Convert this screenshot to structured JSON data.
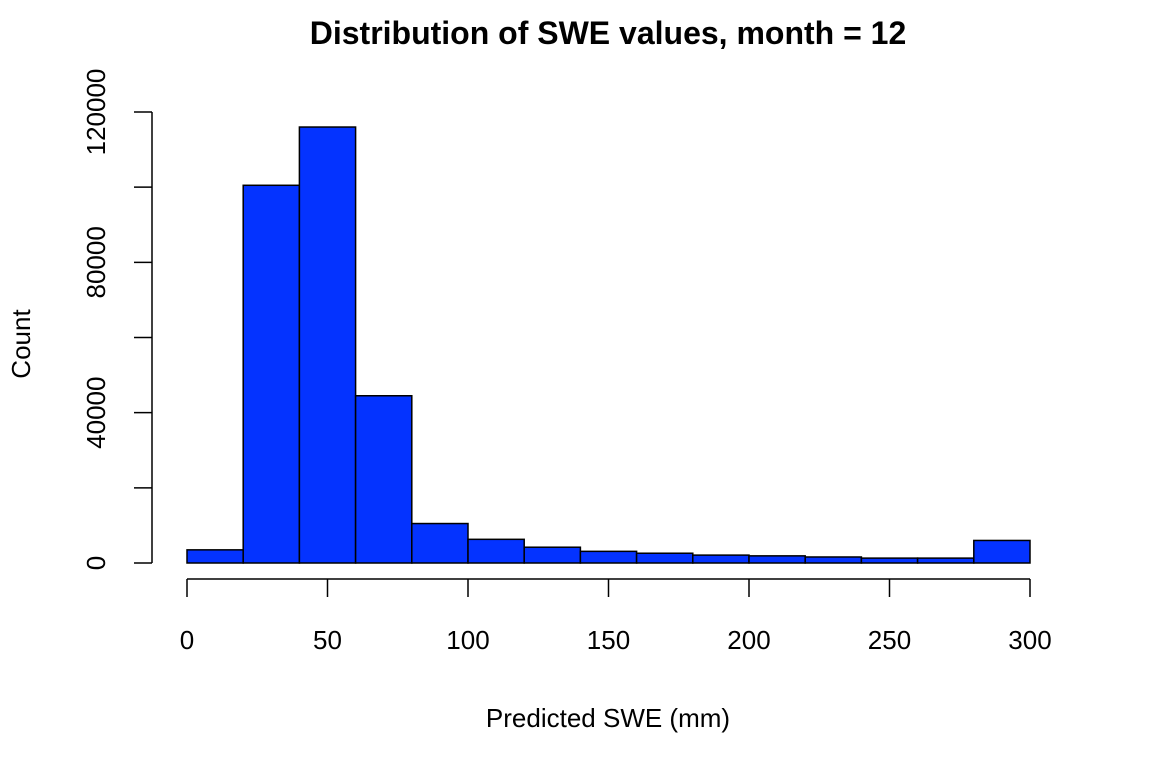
{
  "chart_data": {
    "type": "bar",
    "title": "Distribution of SWE values, month = 12",
    "xlabel": "Predicted SWE (mm)",
    "ylabel": "Count",
    "bin_edges": [
      0,
      20,
      40,
      60,
      80,
      100,
      120,
      140,
      160,
      180,
      200,
      220,
      240,
      260,
      280,
      300
    ],
    "values": [
      3500,
      100500,
      116000,
      44500,
      10500,
      6300,
      4200,
      3100,
      2600,
      2100,
      1900,
      1600,
      1300,
      1300,
      6000
    ],
    "xlim": [
      0,
      300
    ],
    "ylim": [
      0,
      120000
    ],
    "x_ticks": [
      0,
      50,
      100,
      150,
      200,
      250,
      300
    ],
    "y_ticks": [
      0,
      40000,
      80000,
      120000
    ],
    "x_tick_labels": [
      "0",
      "50",
      "100",
      "150",
      "200",
      "250",
      "300"
    ],
    "y_tick_labels": [
      "0",
      "40000",
      "80000",
      "120000"
    ],
    "bar_color": "#0433ff",
    "bar_edge_color": "#000000",
    "grid": false
  }
}
